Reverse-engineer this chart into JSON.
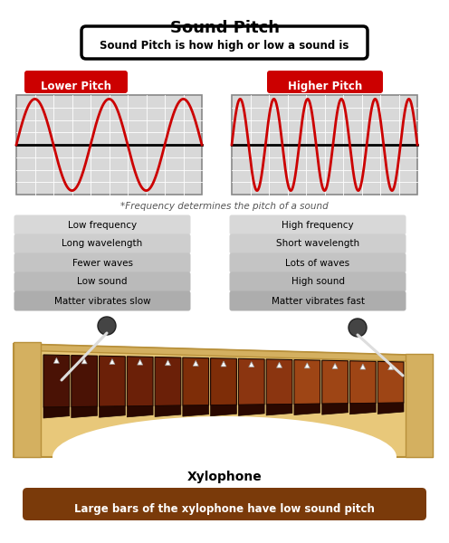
{
  "title": "Sound Pitch",
  "subtitle": "Sound Pitch is how high or low a sound is",
  "left_label": "Lower Pitch",
  "right_label": "Higher Pitch",
  "freq_note": "*Frequency determines the pitch of a sound",
  "left_props": [
    "Low frequency",
    "Long wavelength",
    "Fewer waves",
    "Low sound",
    "Matter vibrates slow"
  ],
  "right_props": [
    "High frequency",
    "Short wavelength",
    "Lots of waves",
    "High sound",
    "Matter vibrates fast"
  ],
  "xylophone_label": "Xylophone",
  "bottom_note": "Large bars of the xylophone have low sound pitch",
  "bg_color": "#ffffff",
  "grid_bg": "#d8d8d8",
  "red_label_bg": "#cc0000",
  "wave_color": "#cc0000",
  "xylophone_body_color": "#e8c87a",
  "bottom_box_color": "#7a3a0a"
}
